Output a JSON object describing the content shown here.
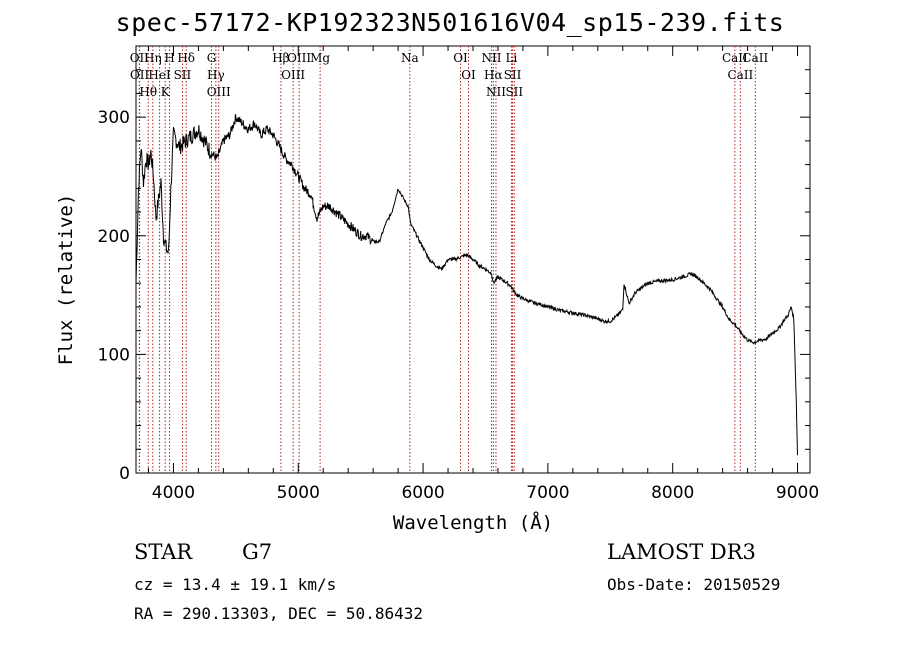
{
  "header": {
    "title": "spec-57172-KP192323N501616V04_sp15-239.fits"
  },
  "footer": {
    "class_label": "STAR",
    "subclass_label": "G7",
    "redshift_text": "cz = 13.4 ± 19.1 km/s",
    "coords_text": "RA = 290.13303, DEC =  50.86432",
    "survey": "LAMOST DR3",
    "obs_date": "Obs-Date: 20150529"
  },
  "colors": {
    "spectrum": "#000000",
    "line_marker": "#b22222",
    "background": "#ffffff"
  },
  "chart_data": {
    "type": "line",
    "title": "spec-57172-KP192323N501616V04_sp15-239.fits",
    "xlabel": "Wavelength (Å)",
    "ylabel": "Flux (relative)",
    "xlim": [
      3700,
      9100
    ],
    "ylim": [
      0,
      360
    ],
    "xticks": [
      4000,
      5000,
      6000,
      7000,
      8000,
      9000
    ],
    "yticks": [
      0,
      100,
      200,
      300
    ],
    "grid": false,
    "series": [
      {
        "name": "flux",
        "x": [
          3700,
          3720,
          3740,
          3760,
          3780,
          3800,
          3820,
          3840,
          3860,
          3880,
          3900,
          3920,
          3940,
          3960,
          3980,
          4000,
          4050,
          4100,
          4150,
          4200,
          4250,
          4300,
          4350,
          4400,
          4450,
          4500,
          4550,
          4600,
          4650,
          4700,
          4750,
          4800,
          4850,
          4900,
          4950,
          5000,
          5050,
          5100,
          5150,
          5200,
          5250,
          5300,
          5350,
          5400,
          5450,
          5500,
          5550,
          5600,
          5650,
          5700,
          5750,
          5800,
          5850,
          5880,
          5900,
          5950,
          6000,
          6050,
          6100,
          6150,
          6200,
          6250,
          6300,
          6350,
          6400,
          6450,
          6500,
          6550,
          6563,
          6600,
          6650,
          6700,
          6750,
          6800,
          6850,
          6900,
          6950,
          7000,
          7100,
          7200,
          7300,
          7400,
          7450,
          7500,
          7550,
          7600,
          7610,
          7650,
          7700,
          7800,
          7900,
          8000,
          8100,
          8150,
          8200,
          8250,
          8300,
          8400,
          8450,
          8500,
          8550,
          8600,
          8650,
          8700,
          8750,
          8800,
          8850,
          8900,
          8920,
          8950,
          8970,
          8990,
          9000
        ],
        "y": [
          160,
          240,
          275,
          245,
          265,
          260,
          270,
          250,
          215,
          230,
          245,
          200,
          190,
          185,
          240,
          285,
          275,
          280,
          285,
          290,
          280,
          270,
          265,
          280,
          285,
          300,
          295,
          290,
          295,
          285,
          290,
          285,
          275,
          265,
          260,
          250,
          240,
          235,
          215,
          225,
          225,
          220,
          215,
          210,
          205,
          200,
          200,
          195,
          195,
          210,
          220,
          240,
          230,
          225,
          210,
          200,
          190,
          180,
          175,
          172,
          180,
          180,
          182,
          184,
          180,
          175,
          172,
          168,
          160,
          165,
          162,
          158,
          150,
          147,
          145,
          143,
          142,
          140,
          137,
          135,
          133,
          130,
          128,
          128,
          132,
          138,
          160,
          143,
          152,
          160,
          162,
          163,
          166,
          168,
          165,
          160,
          155,
          140,
          130,
          125,
          118,
          112,
          110,
          112,
          113,
          118,
          122,
          130,
          132,
          140,
          130,
          60,
          15
        ]
      }
    ],
    "line_markers": [
      {
        "label": "Hθ",
        "wavelength": 3798
      },
      {
        "label": "OII",
        "wavelength": 3727
      },
      {
        "label": "OII",
        "wavelength": 3729
      },
      {
        "label": "HeI",
        "wavelength": 3889
      },
      {
        "label": "Hη",
        "wavelength": 3835
      },
      {
        "label": "K",
        "wavelength": 3934
      },
      {
        "label": "H",
        "wavelength": 3969
      },
      {
        "label": "SII",
        "wavelength": 4072
      },
      {
        "label": "Hδ",
        "wavelength": 4102
      },
      {
        "label": "OIII",
        "wavelength": 4363
      },
      {
        "label": "Hγ",
        "wavelength": 4340
      },
      {
        "label": "G",
        "wavelength": 4305
      },
      {
        "label": "Hβ",
        "wavelength": 4861
      },
      {
        "label": "OIII",
        "wavelength": 4959
      },
      {
        "label": "OIII",
        "wavelength": 5007
      },
      {
        "label": "Mg",
        "wavelength": 5175
      },
      {
        "label": "Na",
        "wavelength": 5894
      },
      {
        "label": "OI",
        "wavelength": 6300
      },
      {
        "label": "OI",
        "wavelength": 6364
      },
      {
        "label": "Hα",
        "wavelength": 6563
      },
      {
        "label": "NII",
        "wavelength": 6548
      },
      {
        "label": "NII",
        "wavelength": 6584
      },
      {
        "label": "SII",
        "wavelength": 6717
      },
      {
        "label": "Li",
        "wavelength": 6708
      },
      {
        "label": "SII",
        "wavelength": 6731
      },
      {
        "label": "CaII",
        "wavelength": 8498
      },
      {
        "label": "CaII",
        "wavelength": 8542
      },
      {
        "label": "CaII",
        "wavelength": 8662
      }
    ]
  }
}
